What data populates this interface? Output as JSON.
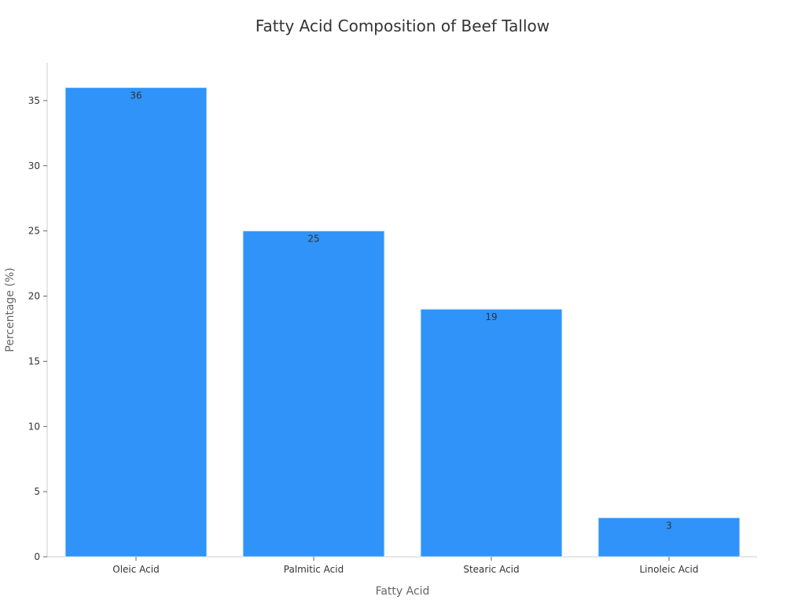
{
  "chart_data": {
    "type": "bar",
    "title": "Fatty Acid Composition of Beef Tallow",
    "xlabel": "Fatty Acid",
    "ylabel": "Percentage (%)",
    "categories": [
      "Oleic Acid",
      "Palmitic Acid",
      "Stearic Acid",
      "Linoleic Acid"
    ],
    "values": [
      36,
      25,
      19,
      3
    ],
    "data_labels": [
      "36",
      "25",
      "19",
      "3"
    ],
    "ylim": [
      0,
      37.8
    ],
    "yticks": [
      0,
      5,
      10,
      15,
      20,
      25,
      30,
      35
    ],
    "ytick_labels": [
      "0",
      "5",
      "10",
      "15",
      "20",
      "25",
      "30",
      "35"
    ],
    "grid": false,
    "legend": "none",
    "bar_color": "#2f93f9",
    "bar_edge_color": "#d9ecff"
  }
}
